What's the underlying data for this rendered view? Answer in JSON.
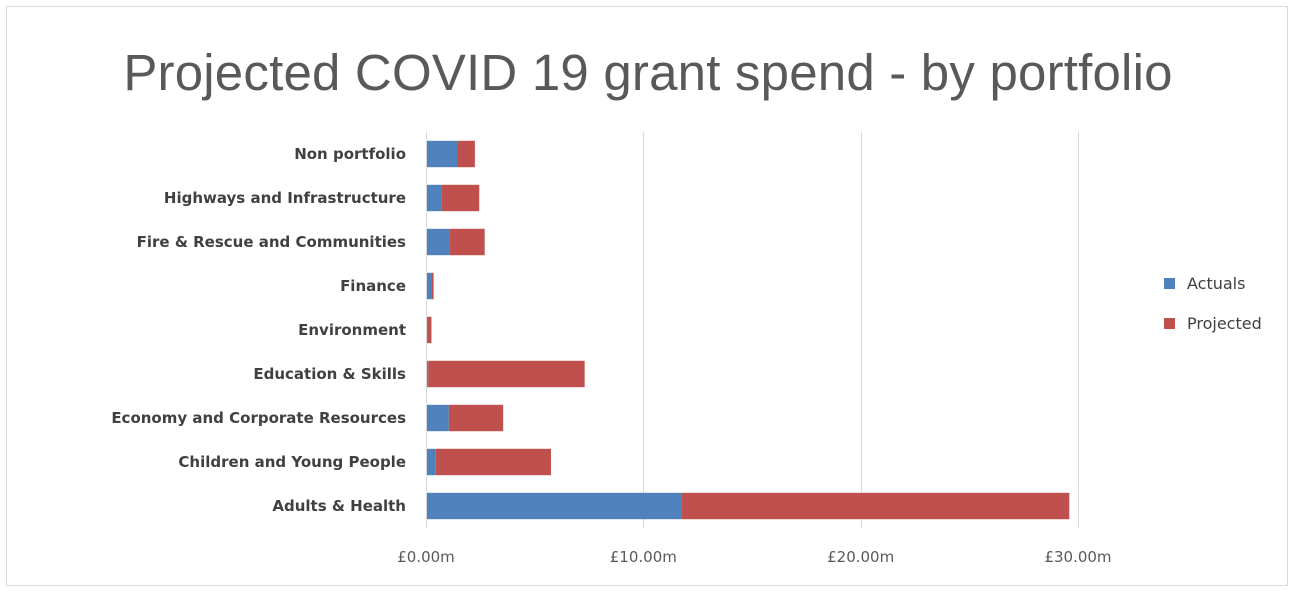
{
  "chart_data": {
    "type": "bar",
    "orientation": "horizontal",
    "stacked": true,
    "title": "Projected COVID 19 grant spend - by portfolio",
    "categories": [
      "Non portfolio",
      "Highways and Infrastructure",
      "Fire & Rescue and Communities",
      "Finance",
      "Environment",
      "Education & Skills",
      "Economy and Corporate Resources",
      "Children and Young People",
      "Adults & Health"
    ],
    "series": [
      {
        "name": "Actuals",
        "color": "#4f81bd",
        "values": [
          1.45,
          0.7,
          1.1,
          0.25,
          0.05,
          0.1,
          1.05,
          0.45,
          11.75
        ]
      },
      {
        "name": "Projected",
        "color": "#c0504d",
        "values": [
          0.8,
          1.75,
          1.6,
          0.1,
          0.2,
          7.2,
          2.5,
          5.3,
          17.85
        ]
      }
    ],
    "x_ticks": [
      "£0.00m",
      "£10.00m",
      "£20.00m",
      "£30.00m"
    ],
    "xlim": [
      0,
      30
    ],
    "grid": true,
    "legend_position": "right"
  }
}
